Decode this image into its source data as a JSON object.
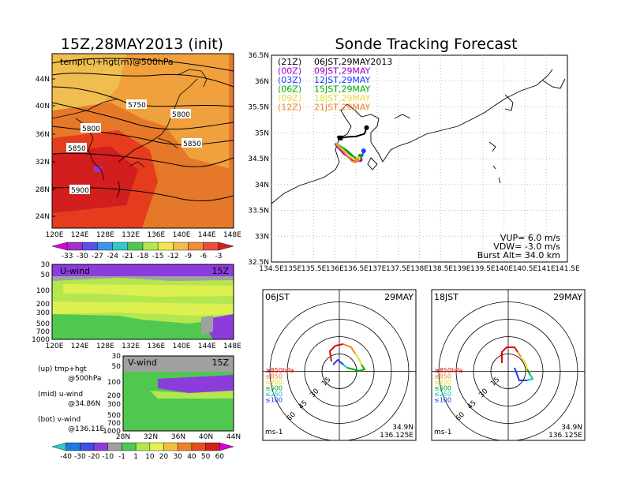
{
  "left_title": "15Z,28MAY2013 (init)",
  "right_title": "Sonde Tracking Forecast",
  "top_map": {
    "label": "temp(C)+hgt(m)@500hPa",
    "contour_labels": [
      "5750",
      "5800",
      "5800",
      "5850",
      "5850",
      "5900"
    ],
    "lat_ticks": [
      "44N",
      "40N",
      "36N",
      "32N",
      "28N",
      "24N"
    ],
    "lon_ticks": [
      "120E",
      "124E",
      "128E",
      "132E",
      "136E",
      "140E",
      "144E",
      "148E"
    ],
    "colorbar_labels": [
      "-33",
      "-30",
      "-27",
      "-24",
      "-21",
      "-18",
      "-15",
      "-12",
      "-9",
      "-6",
      "-3"
    ]
  },
  "u_panel": {
    "label": "U-wind",
    "time": "15Z",
    "p_ticks": [
      "30",
      "50",
      "100",
      "200",
      "300",
      "500",
      "700",
      "1000"
    ],
    "lon_ticks": [
      "120E",
      "124E",
      "128E",
      "132E",
      "136E",
      "140E",
      "144E",
      "148E"
    ]
  },
  "v_panel": {
    "label": "V-wind",
    "time": "15Z",
    "p_ticks": [
      "30",
      "50",
      "100",
      "200",
      "300",
      "500",
      "700",
      "1000"
    ],
    "lat_ticks": [
      "28N",
      "32N",
      "36N",
      "40N",
      "44N"
    ]
  },
  "notes": {
    "up1": "(up)  tmp+hgt",
    "up2": "@500hPa",
    "mid1": "(mid)  u-wind",
    "mid2": "@34.86N",
    "bot1": "(bot)  v-wind",
    "bot2": "@136.11E"
  },
  "wind_colorbar_labels": [
    "-40",
    "-30",
    "-20",
    "-10",
    "-1",
    "1",
    "10",
    "20",
    "30",
    "40",
    "50",
    "60"
  ],
  "track_map": {
    "lat_ticks": [
      "36.5N",
      "36N",
      "35.5N",
      "35N",
      "34.5N",
      "34N",
      "33.5N",
      "33N",
      "32.5N"
    ],
    "lon_ticks": [
      "134.5E",
      "135E",
      "135.5E",
      "136E",
      "136.5E",
      "137E",
      "137.5E",
      "138E",
      "138.5E",
      "139E",
      "139.5E",
      "140E",
      "140.5E",
      "141E",
      "141.5E"
    ],
    "legend": [
      {
        "tag": "(21Z)",
        "time": "06JST,29MAY2013",
        "color": "#000000"
      },
      {
        "tag": "(00Z)",
        "time": "09JST,29MAY",
        "color": "#a000c8"
      },
      {
        "tag": "(03Z)",
        "time": "12JST,29MAY",
        "color": "#1e3cff"
      },
      {
        "tag": "(06Z)",
        "time": "15JST,29MAY",
        "color": "#00aa00"
      },
      {
        "tag": "(09Z)",
        "time": "18JST,29MAY",
        "color": "#e6dc32"
      },
      {
        "tag": "(12Z)",
        "time": "21JST,29MAY",
        "color": "#f08228"
      }
    ],
    "params": [
      "VUP=  6.0  m/s",
      "VDW= -3.0  m/s",
      "Burst Alt=  34.0  km"
    ]
  },
  "polar1": {
    "time": "06JST",
    "date": "29MAY",
    "lat": "34.9N",
    "lon": "136.125E",
    "unit": "ms-1"
  },
  "polar2": {
    "time": "18JST",
    "date": "29MAY",
    "lat": "34.9N",
    "lon": "136.125E",
    "unit": "ms-1"
  },
  "polar_ring_labels": [
    "15",
    "30",
    "45",
    "60"
  ],
  "polar_legend": [
    {
      "label": "≥850hPa",
      "color": "#e60000"
    },
    {
      "label": "≤850",
      "color": "#f08228"
    },
    {
      "label": "≤700",
      "color": "#e6dc32"
    },
    {
      "label": "≤500",
      "color": "#00aa00"
    },
    {
      "label": "≤250",
      "color": "#00c8c8"
    },
    {
      "label": "≤100",
      "color": "#1e3cff"
    }
  ],
  "chart_data": [
    {
      "type": "line",
      "title": "Sonde Tracking Forecast",
      "xlim": [
        134.5,
        141.5
      ],
      "ylim": [
        32.5,
        36.5
      ],
      "launch": {
        "x": 136.125,
        "y": 34.9
      },
      "series": [
        {
          "name": "06JST,29MAY2013",
          "color": "#000000",
          "x": [
            136.05,
            136.125,
            136.3,
            136.5,
            136.7,
            136.75
          ],
          "y": [
            34.92,
            34.9,
            34.92,
            34.93,
            34.98,
            35.1
          ]
        },
        {
          "name": "09JST,29MAY",
          "color": "#a000c8",
          "x": [
            136.0,
            136.2,
            136.45,
            136.55,
            136.6
          ],
          "y": [
            34.78,
            34.6,
            34.45,
            34.45,
            34.48
          ]
        },
        {
          "name": "12JST,29MAY",
          "color": "#1e3cff",
          "x": [
            136.0,
            136.3,
            136.55,
            136.65,
            136.68
          ],
          "y": [
            34.8,
            34.62,
            34.48,
            34.55,
            34.65
          ]
        },
        {
          "name": "15JST,29MAY",
          "color": "#00aa00",
          "x": [
            136.02,
            136.3,
            136.5,
            136.58,
            136.6
          ],
          "y": [
            34.8,
            34.65,
            34.5,
            34.5,
            34.55
          ]
        },
        {
          "name": "18JST,29MAY",
          "color": "#e6dc32",
          "x": [
            136.02,
            136.25,
            136.45,
            136.52,
            136.55
          ],
          "y": [
            34.8,
            34.63,
            34.48,
            34.45,
            34.5
          ]
        },
        {
          "name": "21JST,29MAY",
          "color": "#f08228",
          "x": [
            136.0,
            136.22,
            136.4,
            136.48,
            136.52
          ],
          "y": [
            34.8,
            34.62,
            34.45,
            34.43,
            34.47
          ]
        }
      ]
    }
  ]
}
